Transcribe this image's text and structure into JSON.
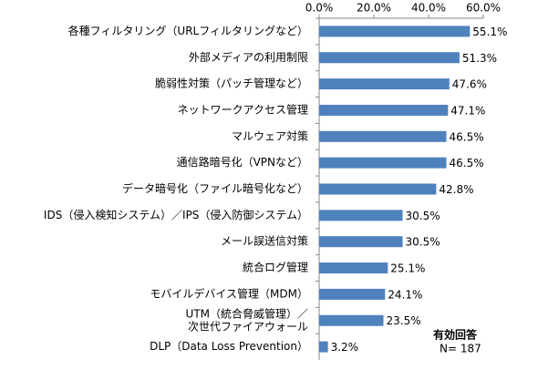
{
  "chart_data": {
    "type": "bar",
    "orientation": "horizontal",
    "color": "#4f81bd",
    "categories": [
      "各種フィルタリング（URLフィルタリングなど）",
      "外部メディアの利用制限",
      "脆弱性対策（パッチ管理など）",
      "ネットワークアクセス管理",
      "マルウェア対策",
      "通信路暗号化（VPNなど）",
      "データ暗号化（ファイル暗号化など）",
      "IDS（侵入検知システム）／IPS（侵入防御システム）",
      "メール誤送信対策",
      "統合ログ管理",
      "モバイルデバイス管理（MDM）",
      "UTM（統合脅威管理）／\n次世代ファイアウォール",
      "DLP（Data Loss Prevention）"
    ],
    "values": [
      55.1,
      51.3,
      47.6,
      47.1,
      46.5,
      46.5,
      42.8,
      30.5,
      30.5,
      25.1,
      24.1,
      23.5,
      3.2
    ],
    "value_labels": [
      "55.1%",
      "51.3%",
      "47.6%",
      "47.1%",
      "46.5%",
      "46.5%",
      "42.8%",
      "30.5%",
      "30.5%",
      "25.1%",
      "24.1%",
      "23.5%",
      "3.2%"
    ],
    "xlim": [
      0,
      60
    ],
    "xticks": [
      {
        "value": 0,
        "label": "0.0%"
      },
      {
        "value": 20,
        "label": "20.0%"
      },
      {
        "value": 40,
        "label": "40.0%"
      },
      {
        "value": 60,
        "label": "60.0%"
      }
    ],
    "annotations": [
      "有効回答",
      "N= 187"
    ]
  }
}
